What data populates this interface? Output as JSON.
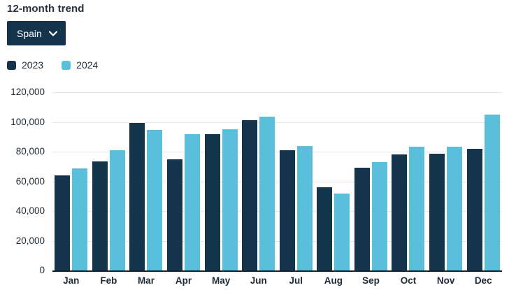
{
  "header": {
    "title": "12-month trend"
  },
  "country_selector": {
    "label": "Spain",
    "icon": "chevron-down-icon"
  },
  "legend": [
    {
      "label": "2023",
      "color": "#14344b"
    },
    {
      "label": "2024",
      "color": "#5abfdb"
    }
  ],
  "colors": {
    "series_2023": "#14344b",
    "series_2024": "#5abfdb",
    "axis_line": "#17222c",
    "gridline": "#e4e7ea",
    "text": "#1e2b36",
    "dropdown_bg": "#14344b",
    "dropdown_text": "#ffffff"
  },
  "chart_data": {
    "type": "bar",
    "title": "12-month trend",
    "categories": [
      "Jan",
      "Feb",
      "Mar",
      "Apr",
      "May",
      "Jun",
      "Jul",
      "Aug",
      "Sep",
      "Oct",
      "Nov",
      "Dec"
    ],
    "series": [
      {
        "name": "2023",
        "color": "#14344b",
        "values": [
          64000,
          73500,
          99500,
          75000,
          92000,
          101000,
          81000,
          56000,
          69000,
          78000,
          78500,
          82000
        ]
      },
      {
        "name": "2024",
        "color": "#5abfdb",
        "values": [
          68500,
          81000,
          94500,
          92000,
          95000,
          103500,
          84000,
          52000,
          73000,
          83500,
          83500,
          105000
        ]
      }
    ],
    "xlabel": "",
    "ylabel": "",
    "ylim": [
      0,
      120000
    ],
    "yticks": [
      0,
      20000,
      40000,
      60000,
      80000,
      100000,
      120000
    ],
    "ytick_labels": [
      "0",
      "20,000",
      "40,000",
      "60,000",
      "80,000",
      "100,000",
      "120,000"
    ],
    "grid": true,
    "legend_position": "top-left"
  }
}
